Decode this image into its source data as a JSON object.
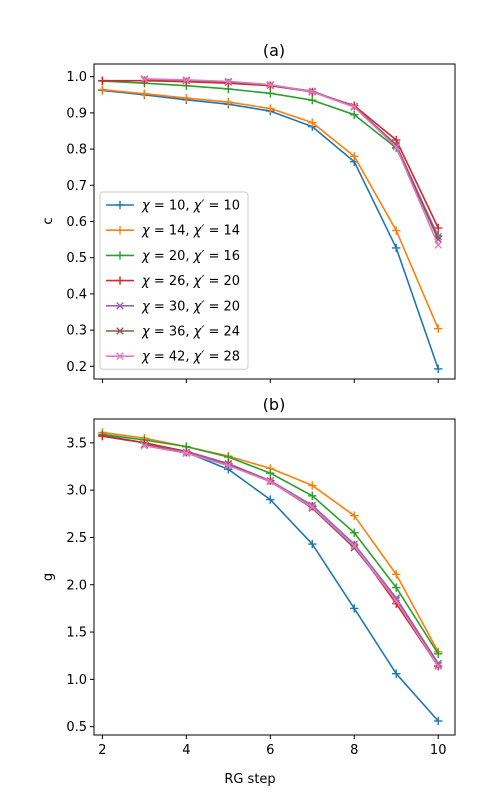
{
  "xlabel": "RG step",
  "chart_data": [
    {
      "type": "line",
      "title": "(a)",
      "xlabel": "",
      "ylabel": "c",
      "xlim": [
        1.8,
        10.4
      ],
      "ylim": [
        0.165,
        1.035
      ],
      "xticks": [
        2,
        4,
        6,
        8,
        10
      ],
      "yticks": [
        0.2,
        0.3,
        0.4,
        0.5,
        0.6,
        0.7,
        0.8,
        0.9,
        1.0
      ],
      "ytick_labels": [
        "0.2",
        "0.3",
        "0.4",
        "0.5",
        "0.6",
        "0.7",
        "0.8",
        "0.9",
        "1.0"
      ],
      "grid": false,
      "legend": "lower-left",
      "series": [
        {
          "name": "χ = 10, χ′ = 10",
          "color": "#1f77b4",
          "marker": "plus",
          "x": [
            2,
            3,
            4,
            5,
            6,
            7,
            8,
            9,
            10
          ],
          "values": [
            0.962,
            0.95,
            0.936,
            0.924,
            0.905,
            0.862,
            0.765,
            0.527,
            0.193
          ]
        },
        {
          "name": "χ = 14, χ′ = 14",
          "color": "#ff7f0e",
          "marker": "plus",
          "x": [
            2,
            3,
            4,
            5,
            6,
            7,
            8,
            9,
            10
          ],
          "values": [
            0.964,
            0.953,
            0.941,
            0.93,
            0.912,
            0.873,
            0.78,
            0.575,
            0.304
          ]
        },
        {
          "name": "χ = 20, χ′ = 16",
          "color": "#2ca02c",
          "marker": "plus",
          "x": [
            2,
            3,
            4,
            5,
            6,
            7,
            8,
            9,
            10
          ],
          "values": [
            0.988,
            0.982,
            0.975,
            0.966,
            0.954,
            0.935,
            0.895,
            0.803,
            0.56
          ]
        },
        {
          "name": "χ = 26, χ′ = 20",
          "color": "#d62728",
          "marker": "plus",
          "x": [
            2,
            3,
            4,
            5,
            6,
            7,
            8,
            9,
            10
          ],
          "values": [
            0.989,
            0.989,
            0.986,
            0.982,
            0.975,
            0.958,
            0.92,
            0.825,
            0.582
          ]
        },
        {
          "name": "χ = 30, χ′ = 20",
          "color": "#9467bd",
          "marker": "x",
          "x": [
            3,
            4,
            5,
            6,
            7,
            8,
            9,
            10
          ],
          "values": [
            0.993,
            0.99,
            0.986,
            0.977,
            0.96,
            0.918,
            0.812,
            0.558
          ]
        },
        {
          "name": "χ = 36, χ′ = 24",
          "color": "#8c564b",
          "marker": "x",
          "x": [
            3,
            4,
            5,
            6,
            7,
            8,
            9,
            10
          ],
          "values": [
            0.992,
            0.989,
            0.985,
            0.976,
            0.958,
            0.917,
            0.809,
            0.551
          ]
        },
        {
          "name": "χ = 42, χ′ = 28",
          "color": "#e377c2",
          "marker": "x",
          "x": [
            3,
            4,
            5,
            6,
            7,
            8,
            9,
            10
          ],
          "values": [
            0.994,
            0.991,
            0.987,
            0.978,
            0.958,
            0.916,
            0.806,
            0.535
          ]
        }
      ]
    },
    {
      "type": "line",
      "title": "(b)",
      "xlabel": "RG step",
      "ylabel": "g",
      "xlim": [
        1.8,
        10.4
      ],
      "ylim": [
        0.412,
        3.752
      ],
      "xticks": [
        2,
        4,
        6,
        8,
        10
      ],
      "yticks": [
        0.5,
        1.0,
        1.5,
        2.0,
        2.5,
        3.0,
        3.5
      ],
      "ytick_labels": [
        "0.5",
        "1.0",
        "1.5",
        "2.0",
        "2.5",
        "3.0",
        "3.5"
      ],
      "grid": false,
      "legend": "",
      "series": [
        {
          "name": "χ = 10, χ′ = 10",
          "color": "#1f77b4",
          "marker": "plus",
          "x": [
            2,
            3,
            4,
            5,
            6,
            7,
            8,
            9,
            10
          ],
          "values": [
            3.58,
            3.5,
            3.4,
            3.22,
            2.9,
            2.43,
            1.75,
            1.06,
            0.56
          ]
        },
        {
          "name": "χ = 14, χ′ = 14",
          "color": "#ff7f0e",
          "marker": "plus",
          "x": [
            2,
            3,
            4,
            5,
            6,
            7,
            8,
            9,
            10
          ],
          "values": [
            3.61,
            3.55,
            3.46,
            3.36,
            3.23,
            3.05,
            2.73,
            2.11,
            1.29
          ]
        },
        {
          "name": "χ = 20, χ′ = 16",
          "color": "#2ca02c",
          "marker": "plus",
          "x": [
            2,
            3,
            4,
            5,
            6,
            7,
            8,
            9,
            10
          ],
          "values": [
            3.59,
            3.53,
            3.46,
            3.35,
            3.18,
            2.94,
            2.55,
            1.97,
            1.27
          ]
        },
        {
          "name": "χ = 26, χ′ = 20",
          "color": "#d62728",
          "marker": "plus",
          "x": [
            2,
            3,
            4,
            5,
            6,
            7,
            8,
            9,
            10
          ],
          "values": [
            3.57,
            3.5,
            3.41,
            3.28,
            3.1,
            2.83,
            2.42,
            1.8,
            1.14
          ]
        },
        {
          "name": "χ = 30, χ′ = 20",
          "color": "#9467bd",
          "marker": "x",
          "x": [
            3,
            4,
            5,
            6,
            7,
            8,
            9,
            10
          ],
          "values": [
            3.48,
            3.4,
            3.28,
            3.1,
            2.84,
            2.43,
            1.86,
            1.17
          ]
        },
        {
          "name": "χ = 36, χ′ = 24",
          "color": "#8c564b",
          "marker": "x",
          "x": [
            3,
            4,
            5,
            6,
            7,
            8,
            9,
            10
          ],
          "values": [
            3.48,
            3.39,
            3.27,
            3.09,
            2.81,
            2.39,
            1.84,
            1.15
          ]
        },
        {
          "name": "χ = 42, χ′ = 28",
          "color": "#e377c2",
          "marker": "x",
          "x": [
            3,
            4,
            5,
            6,
            7,
            8,
            9,
            10
          ],
          "values": [
            3.47,
            3.39,
            3.26,
            3.09,
            2.82,
            2.41,
            1.83,
            1.14
          ]
        }
      ]
    }
  ]
}
